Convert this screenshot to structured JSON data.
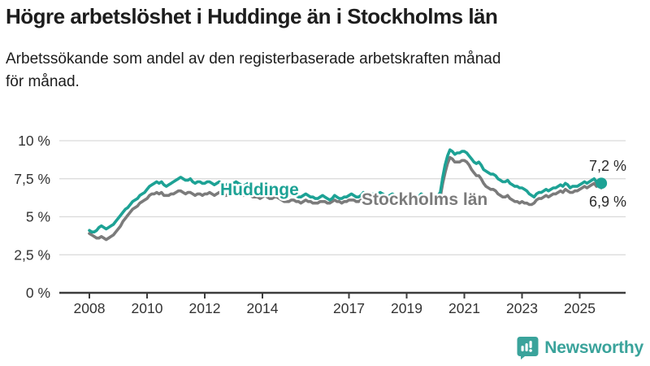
{
  "header": {
    "title": "Högre arbetslöshet i Huddinge än i Stockholms län",
    "subtitle_lines": [
      "Arbetssökande som andel av den registerbaserade arbetskraften månad",
      "för månad."
    ]
  },
  "chart_data": {
    "type": "line",
    "title": "Högre arbetslöshet i Huddinge än i Stockholms län",
    "subtitle": "Arbetssökande som andel av den registerbaserade arbetskraften månad för månad.",
    "unit": "%",
    "x_start_year": 2008,
    "points_per_month": 1,
    "x_end": "2025-10",
    "ylim": [
      0,
      10.5
    ],
    "grid": true,
    "legend_position": "inline-labels",
    "yticks": [
      {
        "value": 0,
        "label": "0 %"
      },
      {
        "value": 2.5,
        "label": "2,5 %"
      },
      {
        "value": 5,
        "label": "5 %"
      },
      {
        "value": 7.5,
        "label": "7,5 %"
      },
      {
        "value": 10,
        "label": "10 %"
      }
    ],
    "xticks": [
      2008,
      2010,
      2012,
      2014,
      2017,
      2019,
      2021,
      2023,
      2025
    ],
    "series": [
      {
        "name": "Stockholms län",
        "color": "#7b7b7b",
        "end_label": "6,9 %",
        "end_value": 6.9,
        "end_dot": false,
        "values": [
          3.9,
          3.8,
          3.7,
          3.6,
          3.6,
          3.7,
          3.6,
          3.5,
          3.6,
          3.7,
          3.8,
          4.0,
          4.2,
          4.4,
          4.7,
          4.9,
          5.1,
          5.3,
          5.5,
          5.6,
          5.7,
          5.9,
          6.0,
          6.1,
          6.2,
          6.4,
          6.5,
          6.5,
          6.6,
          6.5,
          6.6,
          6.4,
          6.4,
          6.4,
          6.5,
          6.5,
          6.6,
          6.7,
          6.7,
          6.6,
          6.5,
          6.6,
          6.6,
          6.5,
          6.4,
          6.5,
          6.5,
          6.4,
          6.5,
          6.5,
          6.6,
          6.5,
          6.4,
          6.5,
          6.6,
          6.5,
          6.4,
          6.4,
          6.5,
          6.5,
          6.5,
          6.6,
          6.5,
          6.4,
          6.4,
          6.5,
          6.5,
          6.4,
          6.3,
          6.3,
          6.3,
          6.2,
          6.3,
          6.4,
          6.3,
          6.2,
          6.2,
          6.3,
          6.3,
          6.2,
          6.1,
          6.0,
          6.0,
          6.0,
          6.1,
          6.1,
          6.0,
          6.0,
          5.9,
          6.0,
          6.1,
          6.0,
          6.0,
          5.9,
          5.9,
          5.9,
          6.0,
          6.0,
          6.0,
          5.9,
          5.9,
          6.0,
          6.1,
          6.0,
          6.0,
          5.9,
          6.0,
          6.0,
          6.1,
          6.1,
          6.1,
          6.0,
          6.0,
          6.1,
          6.2,
          6.1,
          6.1,
          6.1,
          6.1,
          6.1,
          6.2,
          6.2,
          6.1,
          6.0,
          6.0,
          6.1,
          6.2,
          6.1,
          6.0,
          5.9,
          5.9,
          5.9,
          6.0,
          6.0,
          6.0,
          5.9,
          5.9,
          6.0,
          6.2,
          6.1,
          6.0,
          6.0,
          6.0,
          6.0,
          6.1,
          6.1,
          6.3,
          7.2,
          7.9,
          8.5,
          8.9,
          8.8,
          8.6,
          8.6,
          8.6,
          8.7,
          8.7,
          8.6,
          8.4,
          8.1,
          7.9,
          7.7,
          7.7,
          7.5,
          7.2,
          7.0,
          6.9,
          6.8,
          6.8,
          6.7,
          6.5,
          6.4,
          6.3,
          6.3,
          6.4,
          6.2,
          6.1,
          6.0,
          6.0,
          5.9,
          6.0,
          5.9,
          5.9,
          5.8,
          5.8,
          5.9,
          6.1,
          6.2,
          6.2,
          6.3,
          6.4,
          6.3,
          6.4,
          6.5,
          6.5,
          6.6,
          6.7,
          6.6,
          6.8,
          6.7,
          6.6,
          6.6,
          6.7,
          6.7,
          6.8,
          6.9,
          7.0,
          6.9,
          7.0,
          7.1,
          7.2,
          7.0,
          7.1,
          6.9
        ]
      },
      {
        "name": "Huddinge",
        "color": "#1da295",
        "end_label": "7,2 %",
        "end_value": 7.2,
        "end_dot": true,
        "values": [
          4.1,
          4.0,
          4.0,
          4.1,
          4.3,
          4.4,
          4.3,
          4.2,
          4.3,
          4.4,
          4.5,
          4.7,
          4.9,
          5.1,
          5.3,
          5.5,
          5.6,
          5.8,
          6.0,
          6.1,
          6.2,
          6.4,
          6.5,
          6.6,
          6.8,
          7.0,
          7.1,
          7.2,
          7.3,
          7.2,
          7.3,
          7.1,
          7.0,
          7.1,
          7.2,
          7.3,
          7.4,
          7.5,
          7.6,
          7.5,
          7.4,
          7.4,
          7.5,
          7.3,
          7.2,
          7.3,
          7.3,
          7.2,
          7.2,
          7.3,
          7.3,
          7.2,
          7.1,
          7.2,
          7.3,
          7.2,
          7.1,
          7.1,
          7.2,
          7.2,
          7.2,
          7.3,
          7.2,
          7.1,
          7.0,
          7.1,
          7.2,
          7.0,
          6.9,
          6.9,
          6.8,
          6.8,
          6.9,
          7.0,
          6.9,
          6.8,
          6.7,
          6.8,
          6.9,
          6.7,
          6.6,
          6.5,
          6.5,
          6.4,
          6.5,
          6.5,
          6.4,
          6.3,
          6.3,
          6.4,
          6.5,
          6.4,
          6.3,
          6.3,
          6.2,
          6.2,
          6.3,
          6.4,
          6.3,
          6.2,
          6.1,
          6.2,
          6.4,
          6.3,
          6.2,
          6.2,
          6.3,
          6.3,
          6.4,
          6.5,
          6.4,
          6.3,
          6.3,
          6.4,
          6.6,
          6.5,
          6.4,
          6.4,
          6.5,
          6.5,
          6.5,
          6.6,
          6.5,
          6.4,
          6.3,
          6.4,
          6.5,
          6.4,
          6.3,
          6.2,
          6.2,
          6.2,
          6.3,
          6.4,
          6.3,
          6.2,
          6.2,
          6.3,
          6.5,
          6.4,
          6.3,
          6.3,
          6.3,
          6.3,
          6.4,
          6.4,
          6.6,
          7.6,
          8.4,
          9.0,
          9.4,
          9.3,
          9.1,
          9.2,
          9.2,
          9.3,
          9.3,
          9.2,
          9.0,
          8.8,
          8.6,
          8.5,
          8.6,
          8.4,
          8.1,
          8.0,
          7.9,
          7.8,
          7.8,
          7.7,
          7.5,
          7.4,
          7.3,
          7.3,
          7.4,
          7.2,
          7.1,
          7.0,
          7.0,
          6.9,
          6.9,
          6.8,
          6.7,
          6.5,
          6.4,
          6.3,
          6.5,
          6.6,
          6.6,
          6.7,
          6.8,
          6.7,
          6.8,
          6.9,
          6.9,
          7.0,
          7.1,
          7.0,
          7.2,
          7.1,
          6.9,
          7.0,
          7.0,
          7.0,
          7.1,
          7.2,
          7.3,
          7.2,
          7.3,
          7.4,
          7.5,
          7.3,
          7.4,
          7.2
        ]
      }
    ]
  },
  "colors": {
    "huddinge": "#1da295",
    "stockholm": "#7b7b7b",
    "grid": "#d9d9d9",
    "axis": "#3c3c3c",
    "axis_text": "#333333",
    "end_label_text": "#2b2b2b",
    "logo_teal": "#3aa39b"
  },
  "branding": {
    "logo_text": "Newsworthy",
    "logo_icon": "bar-chart-speech-bubble-icon"
  }
}
